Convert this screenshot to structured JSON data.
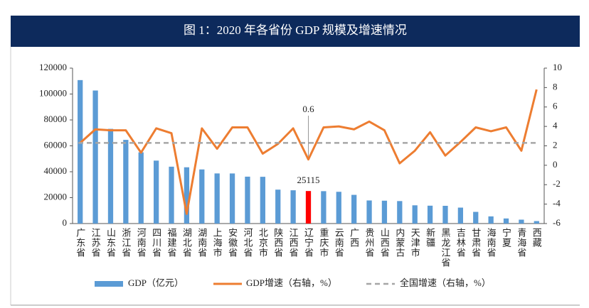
{
  "chart_data": {
    "type": "bar-line",
    "title": "图 1：2020 年各省份 GDP 规模及增速情况",
    "categories": [
      "广东省",
      "江苏省",
      "山东省",
      "浙江省",
      "河南省",
      "四川省",
      "福建省",
      "湖北省",
      "湖南省",
      "上海市",
      "安徽省",
      "河北省",
      "北京市",
      "陕西省",
      "江西省",
      "辽宁省",
      "重庆市",
      "云南省",
      "广西",
      "贵州省",
      "山西省",
      "内蒙古",
      "天津市",
      "新疆",
      "黑龙江省",
      "吉林省",
      "甘肃省",
      "海南省",
      "宁夏",
      "青海省",
      "西藏"
    ],
    "series": [
      {
        "name": "GDP（亿元）",
        "type": "bar",
        "color": "#5b9bd5",
        "highlight_color": "#ff0000",
        "highlight_index": 15,
        "values": [
          110761,
          102719,
          73129,
          64613,
          54997,
          48599,
          43904,
          43443,
          41782,
          38701,
          38681,
          36207,
          36103,
          26182,
          25692,
          25115,
          25003,
          24522,
          22157,
          17827,
          17652,
          17360,
          14084,
          13798,
          13699,
          12311,
          9017,
          5532,
          3921,
          3006,
          1903
        ]
      },
      {
        "name": "GDP增速（右轴，%）",
        "type": "line",
        "axis": "y2",
        "color": "#ed7d31",
        "values": [
          2.3,
          3.7,
          3.6,
          3.6,
          1.3,
          3.8,
          3.3,
          -5.0,
          3.8,
          1.7,
          3.9,
          3.9,
          1.2,
          2.2,
          3.8,
          0.6,
          3.9,
          4.0,
          3.7,
          4.5,
          3.6,
          0.2,
          1.5,
          3.4,
          1.0,
          2.4,
          3.9,
          3.5,
          3.9,
          1.5,
          7.8
        ]
      }
    ],
    "reference_lines": [
      {
        "name": "全国增速（右轴，%）",
        "value": 2.3,
        "axis": "y2",
        "color": "#a6a6a6"
      }
    ],
    "annotations": [
      "0.6",
      "25115"
    ],
    "ylim": [
      0,
      120000
    ],
    "yticks": [
      0,
      20000,
      40000,
      60000,
      80000,
      100000,
      120000
    ],
    "y2lim": [
      -6,
      10
    ],
    "y2ticks": [
      -6,
      -4,
      -2,
      0,
      2,
      4,
      6,
      8,
      10
    ]
  }
}
